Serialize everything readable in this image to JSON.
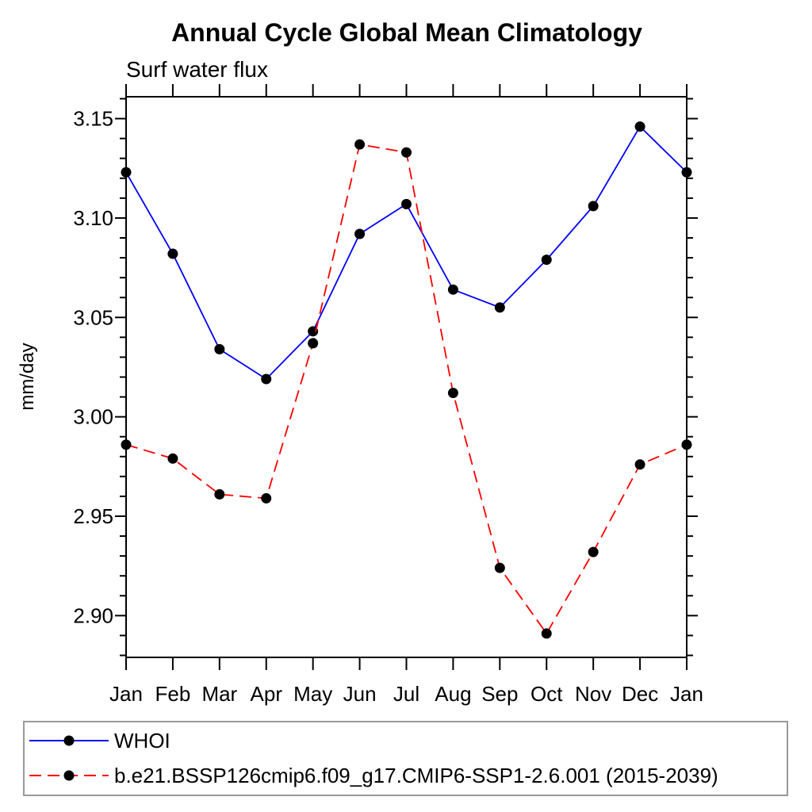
{
  "chart_data": {
    "type": "line",
    "title": "Annual Cycle Global Mean Climatology",
    "subtitle": "Surf water flux",
    "xlabel": "",
    "ylabel": "mm/day",
    "categories": [
      "Jan",
      "Feb",
      "Mar",
      "Apr",
      "May",
      "Jun",
      "Jul",
      "Aug",
      "Sep",
      "Oct",
      "Nov",
      "Dec",
      "Jan"
    ],
    "ylim": [
      2.879,
      3.161
    ],
    "yticks_major": [
      "2.90",
      "2.95",
      "3.00",
      "3.05",
      "3.10",
      "3.15"
    ],
    "ytick_minor_step": 0.01,
    "grid": false,
    "frame": "box-with-outward-ticks",
    "legend_position": "bottom-left-box",
    "axis_color": "#000000",
    "marker_color": "#000000",
    "series": [
      {
        "name": "WHOI",
        "color": "#0000ff",
        "line_style": "solid",
        "marker": "filled-circle",
        "values": [
          3.123,
          3.082,
          3.034,
          3.019,
          3.043,
          3.092,
          3.107,
          3.064,
          3.055,
          3.079,
          3.106,
          3.146,
          3.123
        ]
      },
      {
        "name": "b.e21.BSSP126cmip6.f09_g17.CMIP6-SSP1-2.6.001 (2015-2039)",
        "color": "#ff0000",
        "line_style": "dashed",
        "marker": "filled-circle",
        "values": [
          2.986,
          2.979,
          2.961,
          2.959,
          3.037,
          3.137,
          3.133,
          3.012,
          2.924,
          2.891,
          2.932,
          2.976,
          2.986
        ]
      }
    ]
  }
}
